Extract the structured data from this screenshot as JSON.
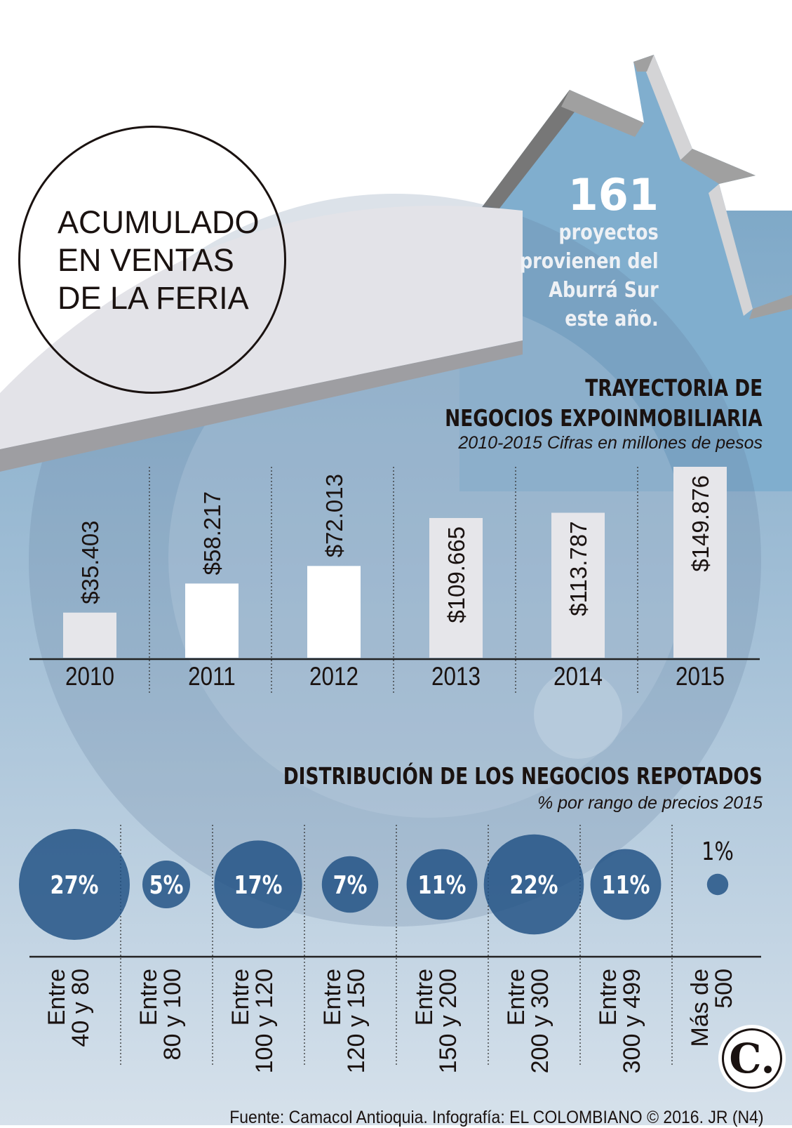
{
  "header": {
    "title_lines": [
      "ACUMULADO",
      "EN VENTAS",
      "DE LA FERIA"
    ]
  },
  "stat": {
    "number": "161",
    "lines": [
      "proyectos",
      "provienen del",
      "Aburrá Sur",
      "este año."
    ]
  },
  "colors": {
    "background_top": "#ffffff",
    "background_blue": "#8fb3cf",
    "bubble": "#2f5f8f",
    "bar": "#e6e6ea",
    "text": "#1a1210"
  },
  "chart_data": [
    {
      "type": "bar",
      "title": "TRAYECTORIA DE NEGOCIOS EXPOINMOBILIARIA",
      "title_lines": [
        "TRAYECTORIA DE",
        "NEGOCIOS EXPOINMOBILIARIA"
      ],
      "subtitle": "2010-2015 Cifras en millones de pesos",
      "categories": [
        "2010",
        "2011",
        "2012",
        "2013",
        "2014",
        "2015"
      ],
      "values": [
        35403,
        58217,
        72013,
        109665,
        113787,
        149876
      ],
      "data_labels": [
        "$35.403",
        "$58.217",
        "$72.013",
        "$109.665",
        "$113.787",
        "$149.876"
      ],
      "ylim": [
        0,
        150000
      ],
      "grid": false
    },
    {
      "type": "bubble",
      "title": "DISTRIBUCIÓN DE LOS NEGOCIOS REPOTADOS",
      "subtitle": "% por rango de precios 2015",
      "categories": [
        [
          "Entre",
          "40 y 80"
        ],
        [
          "Entre",
          "80 y 100"
        ],
        [
          "Entre",
          "100 y 120"
        ],
        [
          "Entre",
          "120 y 150"
        ],
        [
          "Entre",
          "150 y 200"
        ],
        [
          "Entre",
          "200 y 300"
        ],
        [
          "Entre",
          "300 y 499"
        ],
        [
          "Más de",
          "500"
        ]
      ],
      "values": [
        27,
        5,
        17,
        7,
        11,
        22,
        11,
        1
      ],
      "data_labels": [
        "27%",
        "5%",
        "17%",
        "7%",
        "11%",
        "22%",
        "11%",
        "1%"
      ]
    }
  ],
  "footer": {
    "source": "Fuente: Camacol Antioquia. Infografía: EL COLOMBIANO © 2016. JR (N4)",
    "logo_text": "C."
  }
}
